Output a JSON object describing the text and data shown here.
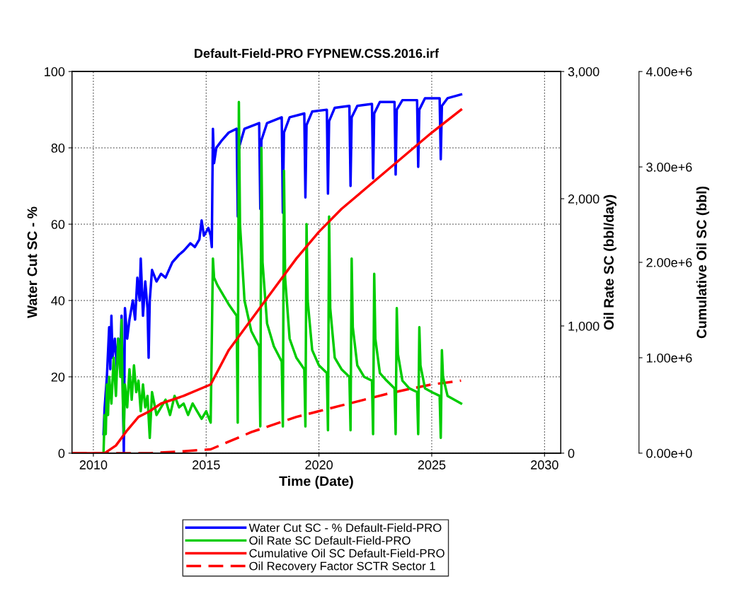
{
  "chart_data": {
    "type": "line",
    "title": "Default-Field-PRO FYPNEW.CSS.2016.irf",
    "xlabel": "Time (Date)",
    "ylabel": "Water Cut SC - %",
    "y2label": "Oil Rate SC (bbl/day)",
    "y3label": "Cumulative Oil SC (bbl)",
    "xlim": [
      2009.05,
      2030.72
    ],
    "xticks": [
      2010,
      2015,
      2020,
      2025,
      2030
    ],
    "ylim": [
      0,
      100
    ],
    "yticks": [
      0,
      20,
      40,
      60,
      80,
      100
    ],
    "y2lim": [
      0,
      3000
    ],
    "y2ticks": [
      0,
      {
        "value": 1000,
        "label": "1,000"
      },
      {
        "value": 2000,
        "label": "2,000"
      },
      {
        "value": 3000,
        "label": "3,000"
      }
    ],
    "y3lim": [
      0,
      4000000
    ],
    "y3ticks": [
      {
        "value": 0,
        "label": "0.00e+0"
      },
      {
        "value": 1000000,
        "label": "1.00e+6"
      },
      {
        "value": 2000000,
        "label": "2.00e+6"
      },
      {
        "value": 3000000,
        "label": "3.00e+6"
      },
      {
        "value": 4000000,
        "label": "4.00e+6"
      }
    ],
    "grid": true,
    "legend": "bottom",
    "marker": "none",
    "series": [
      {
        "name": "Water Cut SC - % Default-Field-PRO",
        "color": "#0000ff",
        "axis": "y",
        "line_style": "solid",
        "x": [
          2010.45,
          2010.5,
          2010.6,
          2010.7,
          2010.75,
          2010.8,
          2010.85,
          2010.95,
          2011.05,
          2011.1,
          2011.2,
          2011.25,
          2011.3,
          2011.35,
          2011.4,
          2011.5,
          2011.6,
          2011.75,
          2011.85,
          2011.95,
          2012.05,
          2012.1,
          2012.2,
          2012.3,
          2012.4,
          2012.45,
          2012.5,
          2012.6,
          2012.8,
          2013.0,
          2013.2,
          2013.5,
          2013.8,
          2014.0,
          2014.3,
          2014.5,
          2014.7,
          2014.8,
          2014.9,
          2015.0,
          2015.1,
          2015.2,
          2015.25,
          2015.3,
          2015.35,
          2015.45,
          2015.7,
          2016.0,
          2016.35,
          2016.4,
          2016.45,
          2016.7,
          2017.35,
          2017.4,
          2017.45,
          2017.7,
          2018.35,
          2018.4,
          2018.45,
          2018.7,
          2019.35,
          2019.4,
          2019.45,
          2019.7,
          2020.35,
          2020.4,
          2020.45,
          2020.7,
          2021.35,
          2021.4,
          2021.45,
          2021.7,
          2022.35,
          2022.4,
          2022.45,
          2022.7,
          2023.35,
          2023.4,
          2023.45,
          2023.7,
          2024.35,
          2024.4,
          2024.45,
          2024.7,
          2025.35,
          2025.4,
          2025.45,
          2025.7,
          2026.3
        ],
        "values": [
          5,
          12,
          20,
          33,
          22,
          36,
          25,
          30,
          22,
          30,
          25,
          36,
          20,
          0,
          38,
          30,
          35,
          40,
          35,
          46,
          40,
          51,
          36,
          45,
          38,
          25,
          40,
          48,
          45,
          47,
          46,
          50,
          52,
          53,
          55,
          54,
          56,
          61,
          57,
          58,
          59,
          57,
          54,
          85,
          76,
          80,
          82,
          84,
          85,
          62,
          80,
          85,
          86.5,
          64,
          82,
          86.5,
          88,
          63,
          84,
          88,
          89,
          67,
          86,
          89.5,
          90,
          68,
          87,
          90.5,
          91,
          70,
          88,
          91,
          91.5,
          72,
          89,
          92,
          92,
          73,
          90,
          92.5,
          92.5,
          75,
          90,
          93,
          93,
          77,
          91,
          93,
          94
        ]
      },
      {
        "name": "Oil Rate SC Default-Field-PRO",
        "color": "#00cc00",
        "axis": "y2",
        "line_style": "solid",
        "x": [
          2010.45,
          2010.5,
          2010.55,
          2010.6,
          2010.65,
          2010.7,
          2010.8,
          2010.9,
          2011.0,
          2011.1,
          2011.2,
          2011.25,
          2011.3,
          2011.35,
          2011.4,
          2011.5,
          2011.6,
          2011.7,
          2011.8,
          2011.9,
          2012.0,
          2012.1,
          2012.2,
          2012.3,
          2012.4,
          2012.5,
          2012.6,
          2012.8,
          2013.0,
          2013.2,
          2013.4,
          2013.6,
          2013.8,
          2014.0,
          2014.2,
          2014.4,
          2014.6,
          2014.8,
          2015.0,
          2015.2,
          2015.3,
          2015.35,
          2015.5,
          2015.8,
          2016.0,
          2016.35,
          2016.4,
          2016.45,
          2016.5,
          2016.7,
          2017.0,
          2017.35,
          2017.4,
          2017.45,
          2017.5,
          2017.7,
          2018.0,
          2018.35,
          2018.4,
          2018.45,
          2018.5,
          2018.7,
          2019.0,
          2019.35,
          2019.4,
          2019.45,
          2019.5,
          2019.7,
          2020.0,
          2020.35,
          2020.4,
          2020.45,
          2020.5,
          2020.7,
          2021.0,
          2021.35,
          2021.4,
          2021.45,
          2021.5,
          2021.7,
          2022.0,
          2022.35,
          2022.4,
          2022.45,
          2022.5,
          2022.7,
          2023.0,
          2023.35,
          2023.4,
          2023.45,
          2023.5,
          2023.7,
          2024.0,
          2024.35,
          2024.4,
          2024.45,
          2024.5,
          2024.7,
          2025.0,
          2025.35,
          2025.4,
          2025.45,
          2025.5,
          2025.7,
          2026.3
        ],
        "values": [
          0,
          300,
          150,
          540,
          300,
          600,
          390,
          750,
          450,
          900,
          600,
          1050,
          450,
          150,
          540,
          360,
          660,
          420,
          690,
          480,
          570,
          330,
          540,
          360,
          450,
          120,
          480,
          300,
          360,
          420,
          300,
          450,
          360,
          390,
          300,
          390,
          330,
          270,
          330,
          240,
          1530,
          1380,
          1320,
          1230,
          1170,
          1080,
          240,
          2760,
          1800,
          1200,
          960,
          840,
          210,
          2400,
          1500,
          1020,
          840,
          720,
          210,
          2220,
          1380,
          900,
          750,
          660,
          210,
          1800,
          1200,
          810,
          690,
          630,
          180,
          1860,
          1140,
          750,
          660,
          600,
          180,
          1530,
          990,
          690,
          600,
          570,
          150,
          1410,
          900,
          630,
          570,
          510,
          150,
          1140,
          780,
          570,
          510,
          480,
          150,
          990,
          690,
          510,
          480,
          450,
          120,
          810,
          600,
          450,
          390
        ]
      },
      {
        "name": "Cumulative Oil SC Default-Field-PRO",
        "color": "#ff0000",
        "axis": "y3",
        "line_style": "solid",
        "x": [
          2009.05,
          2010.5,
          2011,
          2011.5,
          2012,
          2012.5,
          2013,
          2014,
          2015.2,
          2016,
          2017,
          2018,
          2019,
          2020,
          2021,
          2022,
          2023,
          2024,
          2025,
          2026.3
        ],
        "values": [
          0,
          0,
          80000,
          240000,
          380000,
          440000,
          520000,
          600000,
          720000,
          1080000,
          1400000,
          1720000,
          2040000,
          2320000,
          2560000,
          2760000,
          2960000,
          3160000,
          3360000,
          3600000
        ]
      },
      {
        "name": "Oil Recovery Factor SCTR Sector 1",
        "color": "#ff0000",
        "axis": "y",
        "line_style": "dashed",
        "x": [
          2009.05,
          2012.5,
          2014,
          2015.2,
          2016,
          2017,
          2018,
          2019,
          2020,
          2021,
          2022,
          2023,
          2024,
          2025,
          2026.3
        ],
        "values": [
          0,
          0,
          0.5,
          1,
          3,
          5.5,
          7.5,
          9.5,
          11,
          12.5,
          14,
          15.5,
          16.8,
          18,
          19
        ]
      }
    ]
  }
}
